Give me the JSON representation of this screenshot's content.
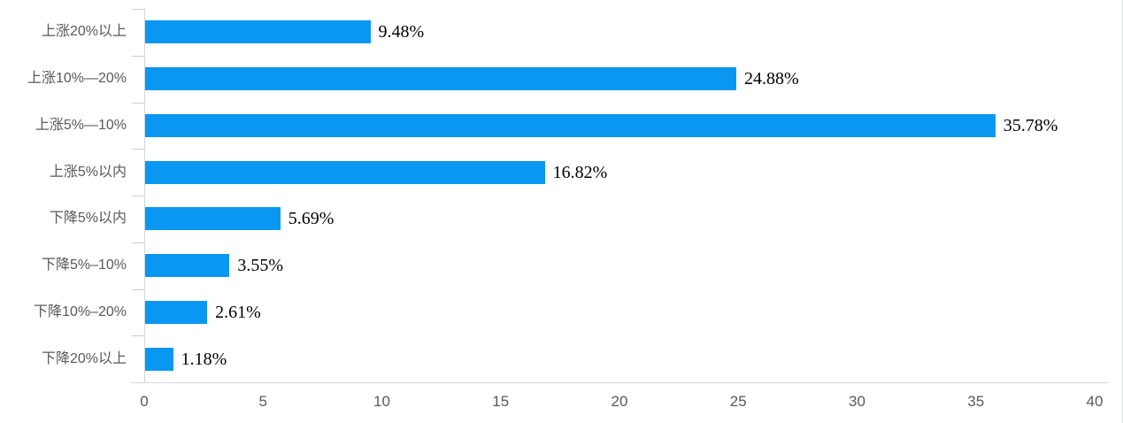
{
  "chart_data": {
    "type": "bar",
    "orientation": "horizontal",
    "title": "",
    "categories": [
      "上涨20%以上",
      "上涨10%—20%",
      "上涨5%—10%",
      "上涨5%以内",
      "下降5%以内",
      "下降5%–10%",
      "下降10%–20%",
      "下降20%以上"
    ],
    "values": [
      9.48,
      24.88,
      35.78,
      16.82,
      5.69,
      3.55,
      2.61,
      1.18
    ],
    "data_labels": [
      "9.48%",
      "24.88%",
      "35.78%",
      "16.82%",
      "5.69%",
      "3.55%",
      "2.61%",
      "1.18%"
    ],
    "xlabel": "",
    "ylabel": "",
    "xlim": [
      0,
      40
    ],
    "x_ticks": [
      "0",
      "5",
      "10",
      "15",
      "20",
      "25",
      "30",
      "35",
      "40"
    ],
    "x_tick_values": [
      0,
      5,
      10,
      15,
      20,
      25,
      30,
      35,
      40
    ],
    "grid": false,
    "legend_position": "none",
    "colors": {
      "bar": "#0A97F1",
      "axis_line": "#d3dae0",
      "tick_line": "#c6cfd8",
      "category_text": "#595959",
      "tick_text": "#595959",
      "value_text": "#000000"
    }
  }
}
